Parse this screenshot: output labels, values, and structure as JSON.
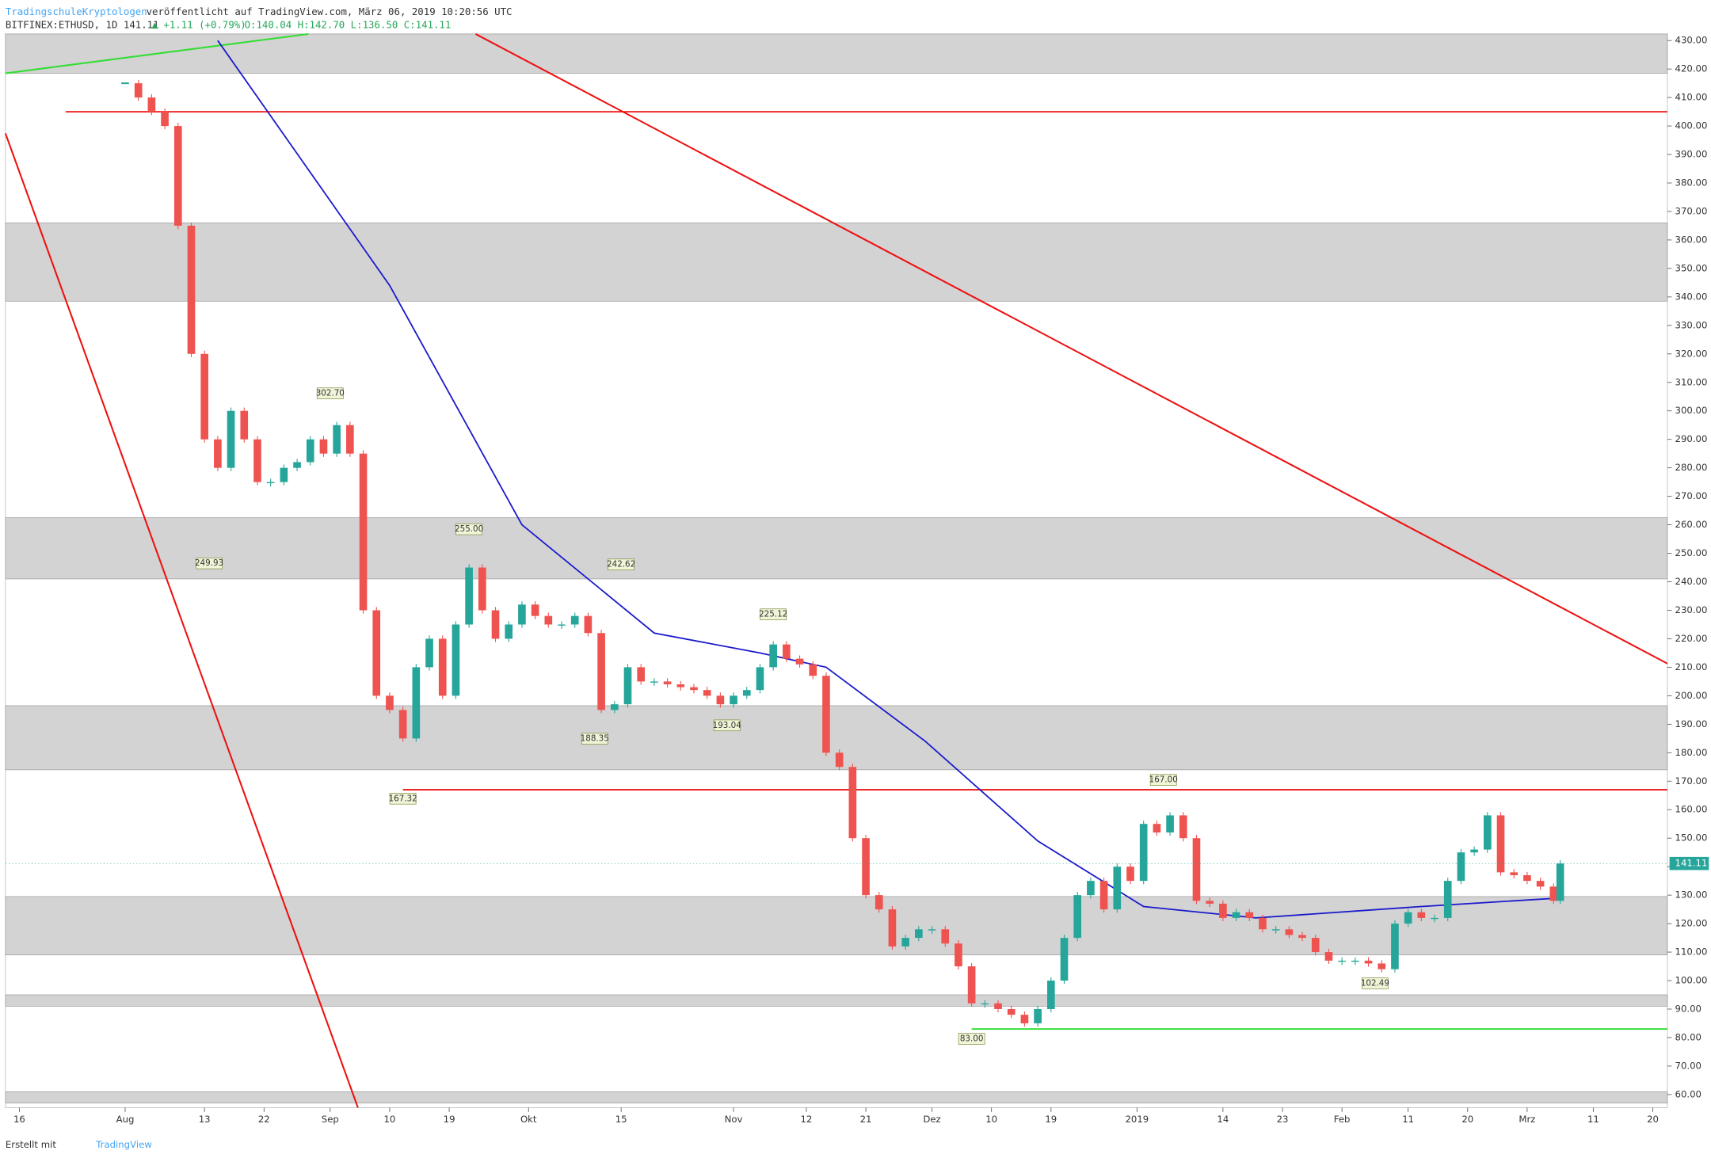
{
  "header": {
    "author": "TradingschuleKryptologen",
    "published": "veröffentlicht auf TradingView.com, März 06, 2019 10:20:56 UTC",
    "symbol": "BITFINEX:ETHUSD, 1D 141.11",
    "change": "▲ +1.11 (+0.79%)",
    "ohlc": "O:140.04 H:142.70 L:136.50 C:141.11"
  },
  "footer": {
    "made_with": "Erstellt mit",
    "brand": "TradingView"
  },
  "chart_data": {
    "type": "candlestick",
    "x": [
      16,
      18,
      20,
      22,
      24,
      26,
      28,
      30,
      32,
      34,
      36,
      38,
      40,
      42,
      44,
      46,
      48,
      50,
      52,
      54,
      56,
      58,
      60,
      62,
      64,
      66,
      68,
      70,
      72,
      74,
      76,
      78,
      80,
      82,
      84,
      86,
      88,
      90,
      92,
      94,
      96,
      98,
      100,
      102,
      104,
      106,
      108,
      110,
      112,
      114,
      116,
      118,
      120,
      122,
      124,
      126,
      128,
      130,
      132,
      134,
      136,
      138,
      140,
      142,
      144,
      146,
      148,
      150,
      152,
      154,
      156,
      158,
      160,
      162,
      164,
      166,
      168,
      170,
      172,
      174,
      176,
      178,
      180,
      182,
      184,
      186,
      188,
      190,
      192,
      194,
      196,
      198,
      200,
      202,
      204,
      206,
      208,
      210,
      212,
      214,
      216,
      218,
      220,
      222,
      224,
      226,
      228,
      230,
      232,
      233
    ],
    "values": [
      415,
      410,
      405,
      400,
      365,
      320,
      290,
      280,
      300,
      290,
      275,
      275,
      280,
      282,
      290,
      285,
      295,
      285,
      230,
      200,
      195,
      185,
      210,
      220,
      200,
      225,
      245,
      230,
      220,
      225,
      232,
      228,
      225,
      225,
      228,
      222,
      195,
      197,
      210,
      205,
      205,
      204,
      203,
      202,
      200,
      197,
      200,
      202,
      210,
      218,
      213,
      211,
      207,
      180,
      175,
      150,
      130,
      125,
      112,
      115,
      118,
      118,
      113,
      105,
      92,
      92,
      90,
      88,
      85,
      90,
      100,
      115,
      130,
      135,
      125,
      140,
      135,
      155,
      152,
      158,
      150,
      128,
      127,
      122,
      124,
      122,
      118,
      118,
      116,
      115,
      110,
      107,
      107,
      107,
      106,
      104,
      120,
      124,
      122,
      122,
      135,
      145,
      146,
      158,
      138,
      137,
      135,
      133,
      128,
      141.11
    ],
    "up_color": "#26a69a",
    "down_color": "#ef5350",
    "last_price": {
      "value": 141.11,
      "label": "141.11"
    },
    "xlim": [
      -2.1,
      249.2
    ],
    "ylim": [
      55.4,
      432.3
    ],
    "xticks": [
      {
        "value": 0,
        "label": "16"
      },
      {
        "value": 16,
        "label": "Aug"
      },
      {
        "value": 28,
        "label": "13"
      },
      {
        "value": 37,
        "label": "22"
      },
      {
        "value": 47,
        "label": "Sep"
      },
      {
        "value": 56,
        "label": "10"
      },
      {
        "value": 65,
        "label": "19"
      },
      {
        "value": 77,
        "label": "Okt"
      },
      {
        "value": 91,
        "label": "15"
      },
      {
        "value": 108,
        "label": "Nov"
      },
      {
        "value": 119,
        "label": "12"
      },
      {
        "value": 128,
        "label": "21"
      },
      {
        "value": 138,
        "label": "Dez"
      },
      {
        "value": 147,
        "label": "10"
      },
      {
        "value": 156,
        "label": "19"
      },
      {
        "value": 169,
        "label": "2019"
      },
      {
        "value": 182,
        "label": "14"
      },
      {
        "value": 191,
        "label": "23"
      },
      {
        "value": 200,
        "label": "Feb"
      },
      {
        "value": 210,
        "label": "11"
      },
      {
        "value": 219,
        "label": "20"
      },
      {
        "value": 228,
        "label": "Mrz"
      },
      {
        "value": 238,
        "label": "11"
      },
      {
        "value": 247,
        "label": "20"
      }
    ],
    "yticks": [
      {
        "value": 60,
        "label": "60.00"
      },
      {
        "value": 70,
        "label": "70.00"
      },
      {
        "value": 80,
        "label": "80.00"
      },
      {
        "value": 90,
        "label": "90.00"
      },
      {
        "value": 100,
        "label": "100.00"
      },
      {
        "value": 110,
        "label": "110.00"
      },
      {
        "value": 120,
        "label": "120.00"
      },
      {
        "value": 130,
        "label": "130.00"
      },
      {
        "value": 140,
        "label": "140.00"
      },
      {
        "value": 150,
        "label": "150.00"
      },
      {
        "value": 160,
        "label": "160.00"
      },
      {
        "value": 170,
        "label": "170.00"
      },
      {
        "value": 180,
        "label": "180.00"
      },
      {
        "value": 190,
        "label": "190.00"
      },
      {
        "value": 200,
        "label": "200.00"
      },
      {
        "value": 210,
        "label": "210.00"
      },
      {
        "value": 220,
        "label": "220.00"
      },
      {
        "value": 230,
        "label": "230.00"
      },
      {
        "value": 240,
        "label": "240.00"
      },
      {
        "value": 250,
        "label": "250.00"
      },
      {
        "value": 260,
        "label": "260.00"
      },
      {
        "value": 270,
        "label": "270.00"
      },
      {
        "value": 280,
        "label": "280.00"
      },
      {
        "value": 290,
        "label": "290.00"
      },
      {
        "value": 300,
        "label": "300.00"
      },
      {
        "value": 310,
        "label": "310.00"
      },
      {
        "value": 320,
        "label": "320.00"
      },
      {
        "value": 330,
        "label": "330.00"
      },
      {
        "value": 340,
        "label": "340.00"
      },
      {
        "value": 350,
        "label": "350.00"
      },
      {
        "value": 360,
        "label": "360.00"
      },
      {
        "value": 370,
        "label": "370.00"
      },
      {
        "value": 380,
        "label": "380.00"
      },
      {
        "value": 390,
        "label": "390.00"
      },
      {
        "value": 400,
        "label": "400.00"
      },
      {
        "value": 410,
        "label": "410.00"
      },
      {
        "value": 420,
        "label": "420.00"
      },
      {
        "value": 430,
        "label": "430.00"
      }
    ],
    "zones": [
      [
        418.5,
        432.3
      ],
      [
        338.5,
        366
      ],
      [
        241,
        262.5
      ],
      [
        174,
        196.5
      ],
      [
        109,
        129.5
      ],
      [
        91,
        95
      ],
      [
        57,
        61
      ]
    ],
    "zone_color": "#d3d3d3",
    "levels": [
      {
        "value": 405,
        "x": [
          7,
          249.2
        ],
        "color": "#ee1111"
      },
      {
        "value": 167,
        "x": [
          58,
          249.2
        ],
        "color": "#ee1111"
      },
      {
        "value": 83,
        "x": [
          144,
          249.2
        ],
        "color": "#22dd22"
      }
    ],
    "trendlines": [
      {
        "x": [
          69,
          249.2
        ],
        "values": [
          432.3,
          211.3
        ],
        "color": "#ee1111"
      },
      {
        "x": [
          -2.1,
          51.2
        ],
        "values": [
          397.4,
          55.4
        ],
        "color": "#ee1111"
      },
      {
        "x": [
          -2.1,
          43.7
        ],
        "values": [
          418.5,
          432.3
        ],
        "color": "#33dd33"
      }
    ],
    "moving_average": {
      "x": [
        30,
        56,
        76,
        96,
        112,
        122,
        137,
        154,
        170,
        187,
        212,
        233
      ],
      "values": [
        430,
        344,
        260,
        222,
        215,
        210,
        184,
        149,
        126,
        122,
        126,
        129
      ],
      "color": "#1a1acc"
    },
    "price_labels": [
      {
        "x": 47,
        "value": 302.7,
        "label": "302.70",
        "side": "above"
      },
      {
        "x": 28.7,
        "value": 249.93,
        "label": "249.93",
        "side": "below"
      },
      {
        "x": 68,
        "value": 255,
        "label": "255.00",
        "side": "above"
      },
      {
        "x": 91,
        "value": 242.62,
        "label": "242.62",
        "side": "above"
      },
      {
        "x": 114,
        "value": 225.12,
        "label": "225.12",
        "side": "above"
      },
      {
        "x": 87,
        "value": 188.35,
        "label": "188.35",
        "side": "below"
      },
      {
        "x": 107,
        "value": 193.04,
        "label": "193.04",
        "side": "below"
      },
      {
        "x": 58,
        "value": 167.32,
        "label": "167.32",
        "side": "below"
      },
      {
        "x": 173,
        "value": 167,
        "label": "167.00",
        "side": "above"
      },
      {
        "x": 144,
        "value": 83,
        "label": "83.00",
        "side": "below"
      },
      {
        "x": 205,
        "value": 102.49,
        "label": "102.49",
        "side": "below"
      }
    ]
  }
}
